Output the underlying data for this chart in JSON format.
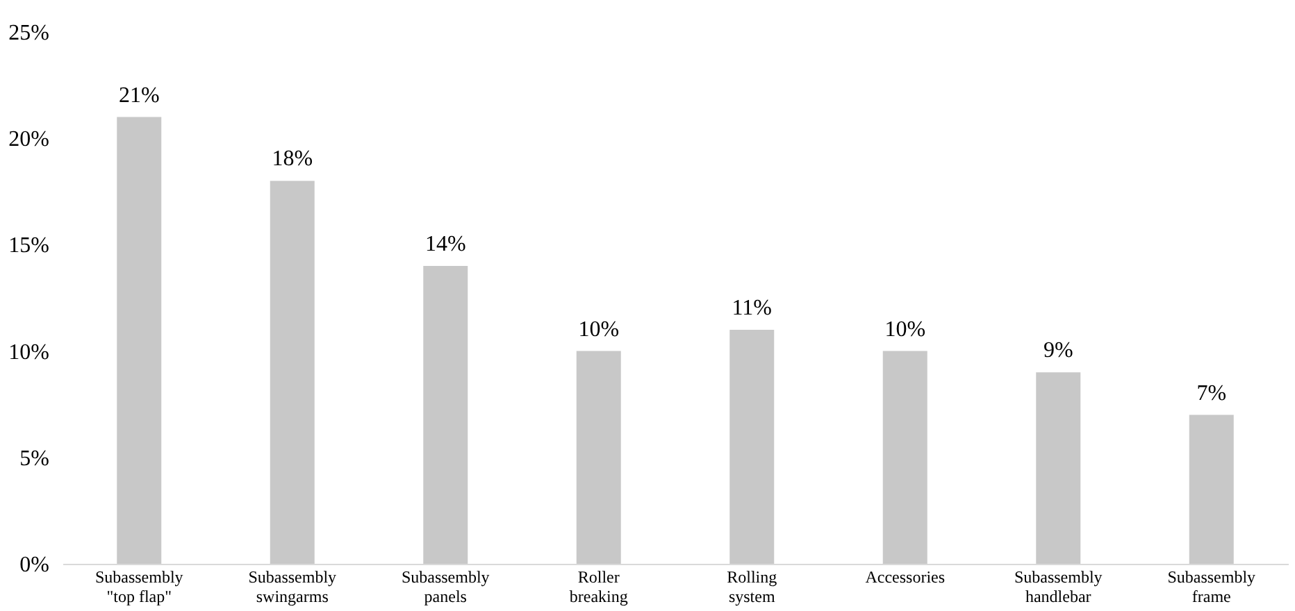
{
  "chart_data": {
    "type": "bar",
    "categories": [
      "Subassembly \"top flap\"",
      "Subassembly swingarms",
      "Subassembly panels",
      "Roller breaking",
      "Rolling system",
      "Accessories",
      "Subassembly handlebar",
      "Subassembly frame"
    ],
    "values": [
      21,
      18,
      14,
      10,
      11,
      10,
      9,
      7
    ],
    "value_labels": [
      "21%",
      "18%",
      "14%",
      "10%",
      "11%",
      "10%",
      "9%",
      "7%"
    ],
    "color": "#c8c8c8",
    "ylim": [
      0,
      25
    ],
    "yticks": [
      {
        "value": 0,
        "label": "0%"
      },
      {
        "value": 5,
        "label": "5%"
      },
      {
        "value": 10,
        "label": "10%"
      },
      {
        "value": 15,
        "label": "15%"
      },
      {
        "value": 20,
        "label": "20%"
      },
      {
        "value": 25,
        "label": "25%"
      }
    ],
    "grid": false
  }
}
